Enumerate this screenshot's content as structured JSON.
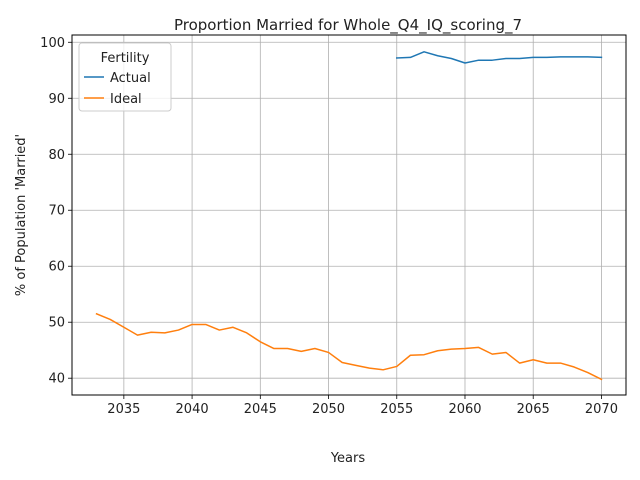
{
  "chart_data": {
    "type": "line",
    "title": "Proportion Married for Whole_Q4_IQ_scoring_7",
    "xlabel": "Years",
    "ylabel": "% of Population 'Married'",
    "xlim": [
      2031.2,
      2071.8
    ],
    "ylim": [
      37.0,
      101.3
    ],
    "xticks": [
      2035,
      2040,
      2045,
      2050,
      2055,
      2060,
      2065,
      2070
    ],
    "yticks": [
      40,
      50,
      60,
      70,
      80,
      90,
      100
    ],
    "grid": true,
    "legend": {
      "title": "Fertility",
      "placement": "top-left"
    },
    "series": [
      {
        "name": "Actual",
        "color": "#1f77b4",
        "x": [
          2055,
          2056,
          2057,
          2058,
          2059,
          2060,
          2061,
          2062,
          2063,
          2064,
          2065,
          2066,
          2067,
          2068,
          2069,
          2070
        ],
        "values": [
          97.2,
          97.3,
          98.3,
          97.6,
          97.1,
          96.3,
          96.8,
          96.8,
          97.1,
          97.1,
          97.3,
          97.3,
          97.4,
          97.4,
          97.4,
          97.3
        ]
      },
      {
        "name": "Ideal",
        "color": "#ff7f0e",
        "x": [
          2033,
          2034,
          2035,
          2036,
          2037,
          2038,
          2039,
          2040,
          2041,
          2042,
          2043,
          2044,
          2045,
          2046,
          2047,
          2048,
          2049,
          2050,
          2051,
          2052,
          2053,
          2054,
          2055,
          2056,
          2057,
          2058,
          2059,
          2060,
          2061,
          2062,
          2063,
          2064,
          2065,
          2066,
          2067,
          2068,
          2069,
          2070
        ],
        "values": [
          51.5,
          50.5,
          49.1,
          47.7,
          48.2,
          48.1,
          48.6,
          49.6,
          49.6,
          48.6,
          49.1,
          48.1,
          46.5,
          45.3,
          45.3,
          44.8,
          45.3,
          44.6,
          42.8,
          42.3,
          41.8,
          41.5,
          42.1,
          44.1,
          44.2,
          44.9,
          45.2,
          45.3,
          45.5,
          44.3,
          44.6,
          42.7,
          43.3,
          42.7,
          42.7,
          42.0,
          41.0,
          39.8
        ]
      }
    ]
  }
}
